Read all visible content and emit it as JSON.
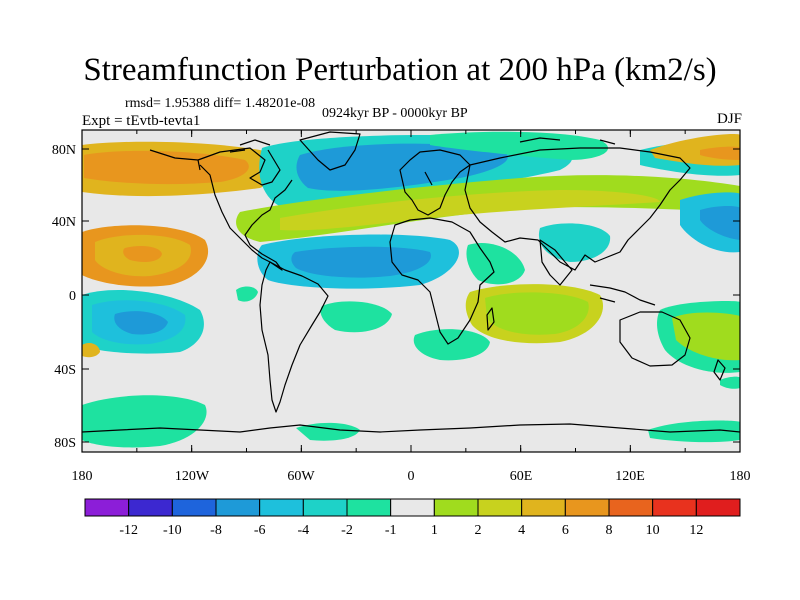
{
  "title": "Streamfunction Perturbation at 200 hPa (km2/s)",
  "stats_line": "rmsd= 1.95388 diff= 1.48201e-08",
  "period_line": "0924kyr BP - 0000kyr BP",
  "experiment_line": "Expt = tEvtb-tevta1",
  "season": "DJF",
  "lat_labels": [
    "80N",
    "40N",
    "0",
    "40S",
    "80S"
  ],
  "lon_labels": [
    "180",
    "120W",
    "60W",
    "0",
    "60E",
    "120E",
    "180"
  ],
  "colorbar": {
    "colors": [
      "#8c1ed8",
      "#3c28d0",
      "#1e64dc",
      "#1e9ad8",
      "#1ec0dc",
      "#1ed2c8",
      "#1ee2a0",
      "#e8e8e8",
      "#a0dc1e",
      "#c8d21e",
      "#e0b41e",
      "#e8961e",
      "#e8641e",
      "#e8321e",
      "#e01e1e"
    ],
    "labels": [
      "-12",
      "-10",
      "-8",
      "-6",
      "-4",
      "-2",
      "-1",
      "1",
      "2",
      "4",
      "6",
      "8",
      "10",
      "12"
    ]
  },
  "map_colors": {
    "neutral": "#e8e8e8",
    "lightgreen": "#1ee2a0",
    "cyan": "#1ed2c8",
    "lightblue": "#1ec0dc",
    "blue": "#1e9ad8",
    "yellowgreen": "#a0dc1e",
    "olive": "#c8d21e",
    "orange": "#e0b41e",
    "darkorange": "#e8961e",
    "coastline": "#000000"
  }
}
